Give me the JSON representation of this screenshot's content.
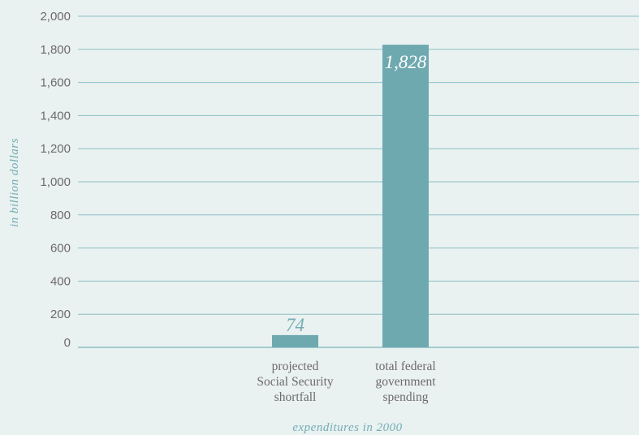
{
  "chart_data": {
    "type": "bar",
    "categories": [
      [
        "projected",
        "Social Security",
        "shortfall"
      ],
      [
        "total federal",
        "government",
        "spending"
      ]
    ],
    "values": [
      74,
      1828
    ],
    "data_labels": [
      "74",
      "1,828"
    ],
    "xlabel": "expenditures in 2000",
    "ylabel": "in billion dollars",
    "ylim": [
      0,
      2000
    ],
    "yticks": [
      0,
      200,
      400,
      600,
      800,
      1000,
      1200,
      1400,
      1600,
      1800,
      2000
    ],
    "ytick_labels": [
      "0",
      "200",
      "400",
      "600",
      "800",
      "1,000",
      "1,200",
      "1,400",
      "1,600",
      "1,800",
      "2,000"
    ],
    "grid": true,
    "legend": "none"
  },
  "colors": {
    "background": "#e9f1f1",
    "bar": "#6fa9b0",
    "grid": "#8ec0c4",
    "text": "#6f6a6a",
    "label_outside": "#74adb3",
    "label_inside": "#ffffff"
  }
}
